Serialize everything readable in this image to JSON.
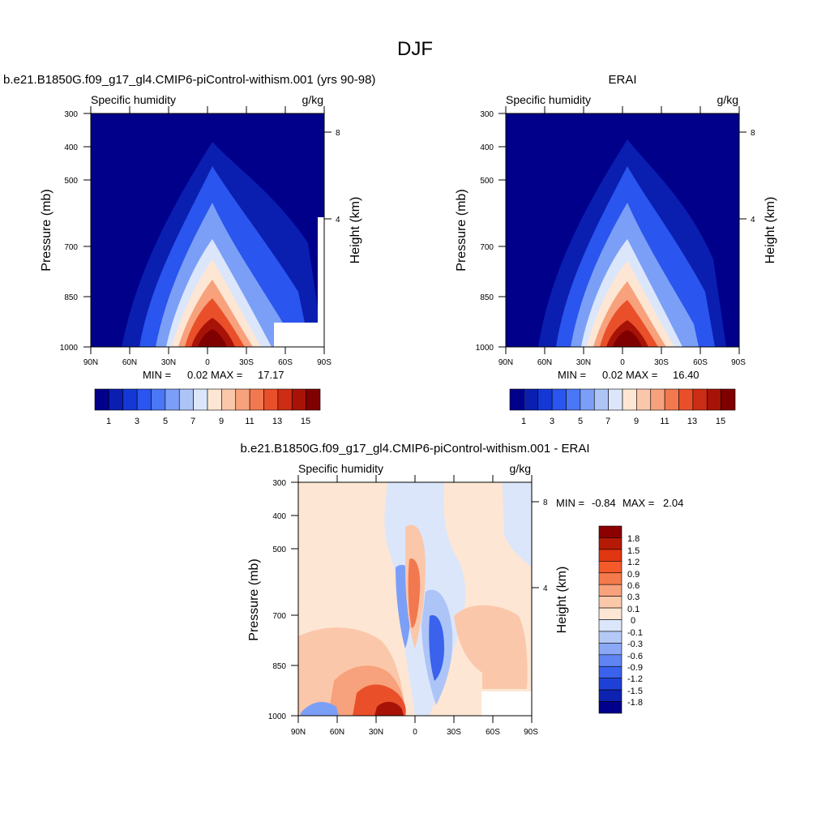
{
  "figure": {
    "title": "DJF"
  },
  "chart_data": [
    {
      "type": "heatmap",
      "title": "b.e21.B1850G.f09_g17_gl4.CMIP6-piControl-withism.001 (yrs 90-98)",
      "variable_label": "Specific humidity",
      "units": "g/kg",
      "ylabel": "Pressure (mb)",
      "ylabel_right": "Height (km)",
      "x_ticks": [
        "90N",
        "60N",
        "30N",
        "0",
        "30S",
        "60S",
        "90S"
      ],
      "y_ticks": [
        "300",
        "400",
        "500",
        "700",
        "850",
        "1000"
      ],
      "y_ticks_right": [
        "8",
        "4"
      ],
      "stats": {
        "min_label": "MIN =",
        "min": "0.02",
        "max_label": "MAX =",
        "max": "17.17"
      },
      "colorbar_labels": [
        "1",
        "3",
        "5",
        "7",
        "9",
        "11",
        "13",
        "15"
      ],
      "colorbar_colors": [
        "#00008b",
        "#0a1fb0",
        "#1438d6",
        "#2a55ee",
        "#4a77f5",
        "#7b9ff7",
        "#adc4f7",
        "#dbe6fb",
        "#fde6d4",
        "#fbc7aa",
        "#f7a27c",
        "#f2794f",
        "#e9502a",
        "#cc2d14",
        "#a81307",
        "#7f0000"
      ],
      "data": {
        "lat": [
          90,
          60,
          30,
          0,
          -30,
          -60,
          -90
        ],
        "pressure": [
          300,
          400,
          500,
          700,
          850,
          1000
        ],
        "peak_value": 17.17,
        "peak_location": {
          "lat": 0,
          "pressure": 1000
        }
      }
    },
    {
      "type": "heatmap",
      "title": "ERAI",
      "variable_label": "Specific humidity",
      "units": "g/kg",
      "ylabel": "Pressure (mb)",
      "ylabel_right": "Height (km)",
      "x_ticks": [
        "90N",
        "60N",
        "30N",
        "0",
        "30S",
        "60S",
        "90S"
      ],
      "y_ticks": [
        "300",
        "400",
        "500",
        "700",
        "850",
        "1000"
      ],
      "y_ticks_right": [
        "8",
        "4"
      ],
      "stats": {
        "min_label": "MIN =",
        "min": "0.02",
        "max_label": "MAX =",
        "max": "16.40"
      },
      "colorbar_labels": [
        "1",
        "3",
        "5",
        "7",
        "9",
        "11",
        "13",
        "15"
      ],
      "colorbar_colors": [
        "#00008b",
        "#0a1fb0",
        "#1438d6",
        "#2a55ee",
        "#4a77f5",
        "#7b9ff7",
        "#adc4f7",
        "#dbe6fb",
        "#fde6d4",
        "#fbc7aa",
        "#f7a27c",
        "#f2794f",
        "#e9502a",
        "#cc2d14",
        "#a81307",
        "#7f0000"
      ],
      "data": {
        "lat": [
          90,
          60,
          30,
          0,
          -30,
          -60,
          -90
        ],
        "pressure": [
          300,
          400,
          500,
          700,
          850,
          1000
        ],
        "peak_value": 16.4,
        "peak_location": {
          "lat": 0,
          "pressure": 1000
        }
      }
    },
    {
      "type": "heatmap",
      "title": "b.e21.B1850G.f09_g17_gl4.CMIP6-piControl-withism.001 - ERAI",
      "variable_label": "Specific humidity",
      "units": "g/kg",
      "ylabel": "Pressure (mb)",
      "ylabel_right": "Height (km)",
      "x_ticks": [
        "90N",
        "60N",
        "30N",
        "0",
        "30S",
        "60S",
        "90S"
      ],
      "y_ticks": [
        "300",
        "400",
        "500",
        "700",
        "850",
        "1000"
      ],
      "y_ticks_right": [
        "8",
        "4"
      ],
      "stats": {
        "min_label": "MIN =",
        "min": "-0.84",
        "max_label": "MAX =",
        "max": "2.04"
      },
      "colorbar_labels": [
        "1.8",
        "1.5",
        "1.2",
        "0.9",
        "0.6",
        "0.3",
        "0.1",
        "0",
        "-0.1",
        "-0.3",
        "-0.6",
        "-0.9",
        "-1.2",
        "-1.5",
        "-1.8"
      ],
      "colorbar_colors": [
        "#8b0000",
        "#b51a06",
        "#e03612",
        "#f45a2a",
        "#f47a4c",
        "#f7a27c",
        "#fbc8aa",
        "#fde6d4",
        "#dbe6fb",
        "#b5c9f6",
        "#8aa8f5",
        "#5f85f2",
        "#3a62ec",
        "#1f40d6",
        "#0d22b0",
        "#00008b"
      ]
    }
  ]
}
